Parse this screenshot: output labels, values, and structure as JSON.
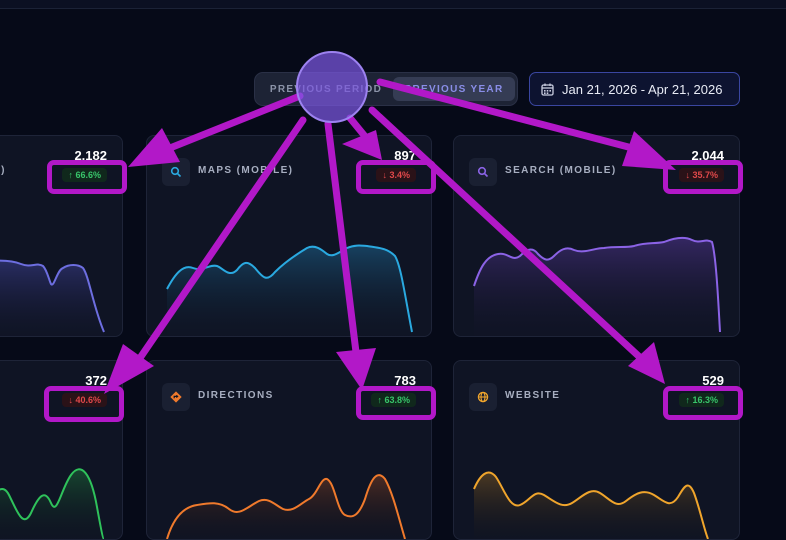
{
  "period_toggle": {
    "previous_period_label": "PREVIOUS PERIOD",
    "previous_year_label": "PREVIOUS YEAR",
    "selected": "PREVIOUS YEAR"
  },
  "date_range": {
    "label": "Jan 21, 2026 - Apr 21, 2026",
    "icon": "calendar-icon"
  },
  "cards": [
    {
      "key": "card-1",
      "label": "P)",
      "value": "2,182",
      "change": "66.6%",
      "direction": "up",
      "icon": "search-icon",
      "color": "#6d6ee0"
    },
    {
      "key": "card-2",
      "label": "MAPS (MOBILE)",
      "value": "897",
      "change": "3.4%",
      "direction": "down",
      "icon": "search-icon",
      "color": "#2aa9e0"
    },
    {
      "key": "card-3",
      "label": "SEARCH (MOBILE)",
      "value": "2,044",
      "change": "35.7%",
      "direction": "down",
      "icon": "search-icon",
      "color": "#8b63e6"
    },
    {
      "key": "card-4",
      "label": "",
      "value": "372",
      "change": "40.6%",
      "direction": "down",
      "icon": "",
      "color": "#2fc25b"
    },
    {
      "key": "card-5",
      "label": "DIRECTIONS",
      "value": "783",
      "change": "63.8%",
      "direction": "up",
      "icon": "directions-icon",
      "color": "#f07a2c"
    },
    {
      "key": "card-6",
      "label": "WEBSITE",
      "value": "529",
      "change": "16.3%",
      "direction": "up",
      "icon": "globe-icon",
      "color": "#f0a52c"
    }
  ],
  "arrow_symbols": {
    "up": "↑",
    "down": "↓"
  },
  "annotation": {
    "color": "#b218c8",
    "origin_marker_color": "#7b58e0",
    "highlighted": [
      "card-1 change badge",
      "card-2 change badge",
      "card-3 change badge",
      "card-4 change badge",
      "card-5 change badge",
      "card-6 change badge"
    ]
  }
}
